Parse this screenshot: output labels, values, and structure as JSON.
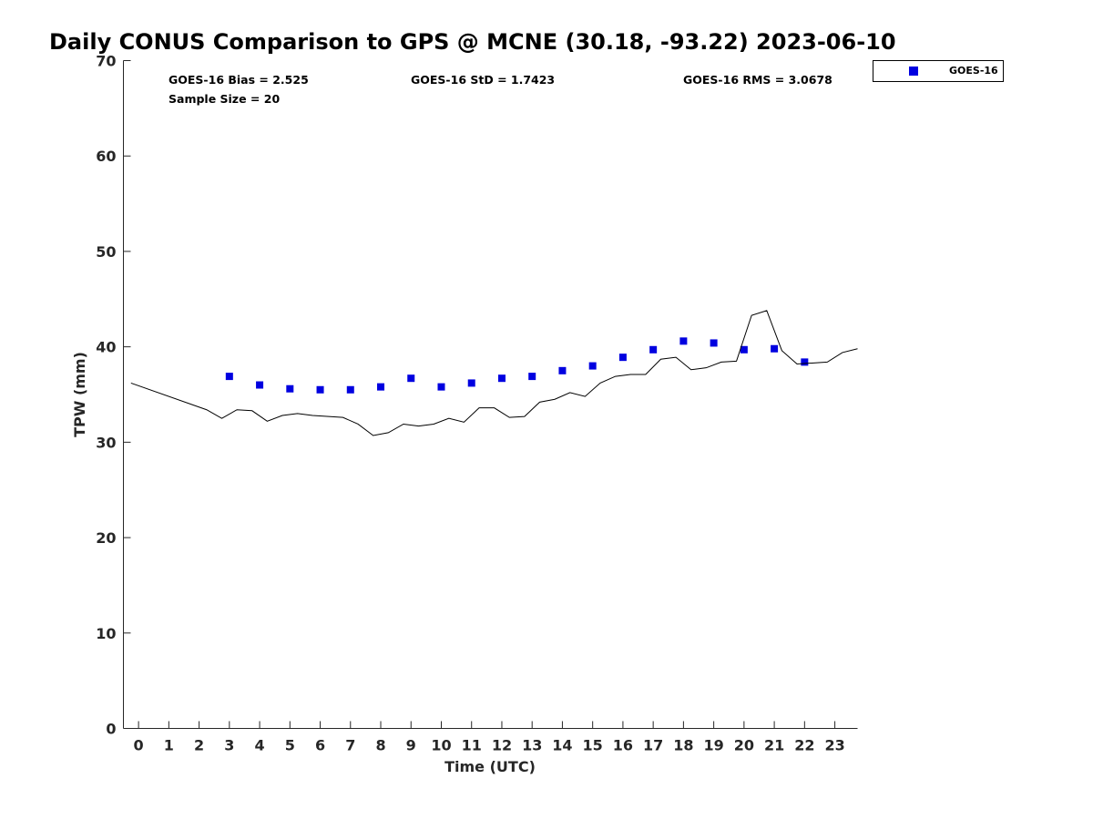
{
  "chart_data": {
    "type": "scatter",
    "title": "Daily CONUS Comparison to GPS @ MCNE (30.18, -93.22) 2023-06-10",
    "xlabel": "Time (UTC)",
    "ylabel": "TPW (mm)",
    "xlim": [
      -0.5,
      23.75
    ],
    "ylim": [
      0,
      70
    ],
    "x_ticks": [
      0,
      1,
      2,
      3,
      4,
      5,
      6,
      7,
      8,
      9,
      10,
      11,
      12,
      13,
      14,
      15,
      16,
      17,
      18,
      19,
      20,
      21,
      22,
      23
    ],
    "y_ticks": [
      0,
      10,
      20,
      30,
      40,
      50,
      60,
      70
    ],
    "grid": false,
    "legend_position": "outside-top-right",
    "stats": {
      "bias": "GOES-16 Bias = 2.525",
      "std": "GOES-16 StD = 1.7423",
      "rms": "GOES-16 RMS = 3.0678",
      "sample": "Sample Size = 20"
    },
    "series": [
      {
        "name": "GOES-16",
        "kind": "marker",
        "marker": "square",
        "color": "#0000e0",
        "points": [
          [
            3,
            36.9
          ],
          [
            4,
            36.0
          ],
          [
            5,
            35.6
          ],
          [
            6,
            35.5
          ],
          [
            7,
            35.5
          ],
          [
            8,
            35.8
          ],
          [
            9,
            36.7
          ],
          [
            10,
            35.8
          ],
          [
            11,
            36.2
          ],
          [
            12,
            36.7
          ],
          [
            13,
            36.9
          ],
          [
            14,
            37.5
          ],
          [
            15,
            38.0
          ],
          [
            16,
            38.9
          ],
          [
            17,
            39.7
          ],
          [
            18,
            40.6
          ],
          [
            19,
            40.4
          ],
          [
            20,
            39.7
          ],
          [
            21,
            39.8
          ],
          [
            22,
            38.4
          ]
        ]
      },
      {
        "kind": "line",
        "color": "#000000",
        "points": [
          [
            -0.25,
            36.2
          ],
          [
            2.25,
            33.4
          ],
          [
            2.75,
            32.5
          ],
          [
            3.25,
            33.4
          ],
          [
            3.75,
            33.3
          ],
          [
            4.25,
            32.2
          ],
          [
            4.75,
            32.8
          ],
          [
            5.25,
            33.0
          ],
          [
            5.75,
            32.8
          ],
          [
            6.75,
            32.6
          ],
          [
            7.25,
            31.9
          ],
          [
            7.75,
            30.7
          ],
          [
            8.25,
            31.0
          ],
          [
            8.75,
            31.9
          ],
          [
            9.25,
            31.7
          ],
          [
            9.75,
            31.9
          ],
          [
            10.25,
            32.5
          ],
          [
            10.75,
            32.1
          ],
          [
            11.25,
            33.6
          ],
          [
            11.75,
            33.6
          ],
          [
            12.25,
            32.6
          ],
          [
            12.75,
            32.7
          ],
          [
            13.25,
            34.2
          ],
          [
            13.75,
            34.5
          ],
          [
            14.25,
            35.2
          ],
          [
            14.75,
            34.8
          ],
          [
            15.25,
            36.2
          ],
          [
            15.75,
            36.9
          ],
          [
            16.25,
            37.1
          ],
          [
            16.75,
            37.1
          ],
          [
            17.25,
            38.7
          ],
          [
            17.75,
            38.9
          ],
          [
            18.25,
            37.6
          ],
          [
            18.75,
            37.8
          ],
          [
            19.25,
            38.4
          ],
          [
            19.75,
            38.5
          ],
          [
            20.25,
            43.3
          ],
          [
            20.75,
            43.8
          ],
          [
            21.25,
            39.6
          ],
          [
            21.75,
            38.2
          ],
          [
            22.25,
            38.3
          ],
          [
            22.75,
            38.4
          ],
          [
            23.25,
            39.4
          ],
          [
            23.75,
            39.8
          ]
        ]
      }
    ]
  }
}
